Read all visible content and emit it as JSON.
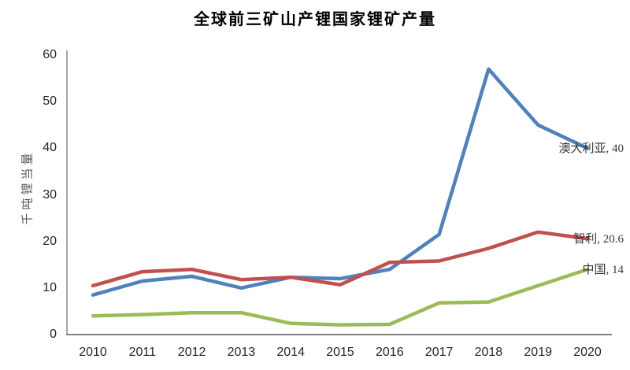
{
  "chart_data": {
    "type": "line",
    "title": "全球前三矿山产锂国家锂矿产量",
    "ylabel": "千吨锂当量",
    "xlabel": "",
    "categories": [
      "2010",
      "2011",
      "2012",
      "2013",
      "2014",
      "2015",
      "2016",
      "2017",
      "2018",
      "2019",
      "2020"
    ],
    "ylim": [
      0,
      60
    ],
    "yticks": [
      0,
      10,
      20,
      30,
      40,
      50,
      60
    ],
    "grid": false,
    "legend_position": "series end labels at right of plot",
    "background_color": "#FFFFFF",
    "y_axis_color": "#A6A6A6",
    "x_axis_color": "#808080",
    "tick_label_color": "#262626",
    "series": [
      {
        "name": "澳大利亚",
        "color": "#4F81BD",
        "values": [
          8.5,
          11.5,
          12.5,
          10,
          12.3,
          12,
          14,
          21.5,
          57,
          45,
          40
        ],
        "end_label": "澳大利亚, 40"
      },
      {
        "name": "智利",
        "color": "#C0504D",
        "values": [
          10.5,
          13.5,
          14,
          11.8,
          12.3,
          10.7,
          15.5,
          15.8,
          18.5,
          22,
          20.6
        ],
        "end_label": "智利, 20.6"
      },
      {
        "name": "中国",
        "color": "#9BBB59",
        "values": [
          4,
          4.3,
          4.7,
          4.7,
          2.4,
          2.1,
          2.2,
          6.8,
          7,
          10.5,
          14
        ],
        "end_label": "中国, 14"
      }
    ]
  }
}
